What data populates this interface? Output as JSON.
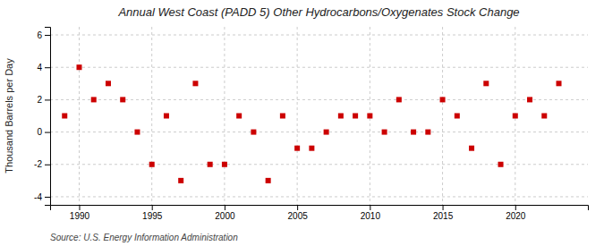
{
  "chart_data": {
    "type": "scatter",
    "title": "Annual West Coast (PADD 5) Other Hydrocarbons/Oxygenates Stock Change",
    "ylabel": "Thousand Barrels per Day",
    "source": "Source: U.S. Energy Information Administration",
    "x": [
      1989,
      1990,
      1991,
      1992,
      1993,
      1994,
      1995,
      1996,
      1997,
      1998,
      1999,
      2000,
      2001,
      2002,
      2003,
      2004,
      2005,
      2006,
      2007,
      2008,
      2009,
      2010,
      2011,
      2012,
      2013,
      2014,
      2015,
      2016,
      2017,
      2018,
      2019,
      2020,
      2021,
      2022,
      2023
    ],
    "values": [
      1,
      4,
      2,
      3,
      2,
      0,
      -2,
      1,
      -3,
      3,
      -2,
      -2,
      1,
      0,
      -3,
      1,
      -1,
      -1,
      0,
      1,
      1,
      1,
      0,
      2,
      0,
      0,
      2,
      1,
      -1,
      3,
      -2,
      1,
      2,
      1,
      3
    ],
    "color": "#cc0000",
    "marker": "square",
    "xlim": [
      1988,
      2025
    ],
    "xticks": [
      1990,
      1995,
      2000,
      2005,
      2010,
      2015,
      2020
    ],
    "ylim": [
      -4.5,
      6.5
    ],
    "yticks": [
      -4,
      -2,
      0,
      2,
      4,
      6
    ],
    "grid": true
  }
}
